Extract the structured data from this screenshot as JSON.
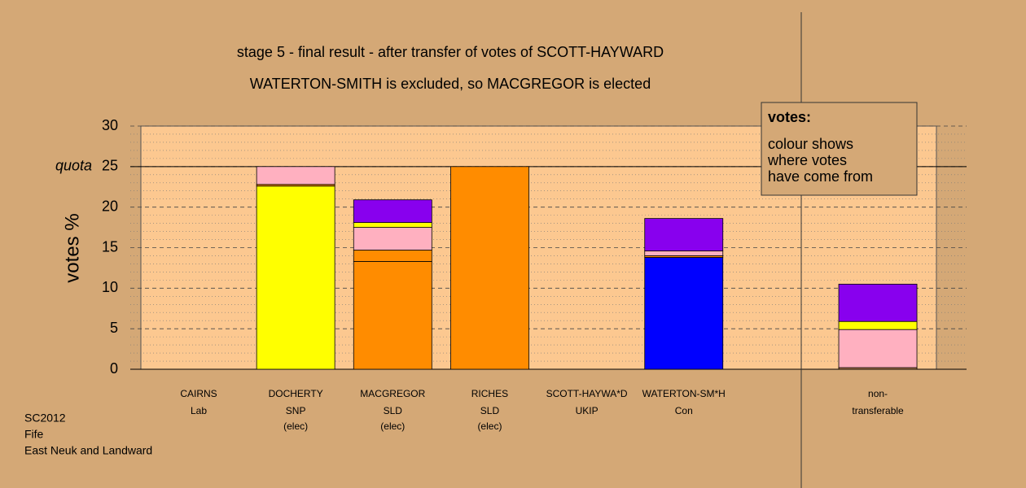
{
  "chart_data": {
    "type": "bar",
    "stacked": true,
    "title": "stage 5 - final result - after transfer of votes of SCOTT-HAYWARD",
    "subtitle": "WATERTON-SMITH is excluded, so MACGREGOR is elected",
    "y_label": "votes %",
    "categories": [
      "CAIRNS",
      "DOCHERTY",
      "MACGREGOR",
      "RICHES",
      "SCOTT-HAYWA*D",
      "WATERTON-SM*H",
      null,
      "non-"
    ],
    "parties": [
      "Lab",
      "SNP",
      "SLD",
      "SLD",
      "UKIP",
      "Con",
      null,
      "transferable"
    ],
    "status": [
      null,
      "(elec)",
      "(elec)",
      "(elec)",
      null,
      null,
      null,
      null
    ],
    "series": [
      {
        "color": "#ff8c00",
        "values": [
          null,
          null,
          13.3,
          25,
          null,
          null,
          null,
          null
        ]
      },
      {
        "color": "#0000ff",
        "values": [
          null,
          null,
          null,
          null,
          null,
          13.8,
          null,
          null
        ]
      },
      {
        "color": "#ffff00",
        "values": [
          null,
          22.6,
          null,
          null,
          null,
          null,
          null,
          null
        ]
      },
      {
        "color": "#ff8c00",
        "values": [
          null,
          0.2,
          1.4,
          null,
          null,
          0.2,
          null,
          null
        ]
      },
      {
        "color": "#c08050",
        "values": [
          null,
          null,
          null,
          null,
          null,
          null,
          null,
          0.2
        ]
      },
      {
        "color": "#ffb0c0",
        "values": [
          null,
          2.2,
          2.8,
          null,
          null,
          0.6,
          null,
          4.7
        ]
      },
      {
        "color": "#ffff00",
        "values": [
          null,
          null,
          0.6,
          null,
          null,
          null,
          null,
          1.0
        ]
      },
      {
        "color": "#8800ee",
        "values": [
          null,
          null,
          2.8,
          null,
          null,
          4.0,
          null,
          4.6
        ]
      }
    ],
    "ylim": [
      0,
      30
    ],
    "yticks": [
      0,
      5,
      10,
      15,
      20,
      25,
      30
    ],
    "quota": 25,
    "quota_label": "quota",
    "grid": true,
    "legend": {
      "title": "votes:",
      "lines": [
        "colour shows",
        "where votes",
        "have come from"
      ]
    },
    "footer": [
      "SC2012",
      "Fife",
      "East Neuk and Landward"
    ]
  }
}
